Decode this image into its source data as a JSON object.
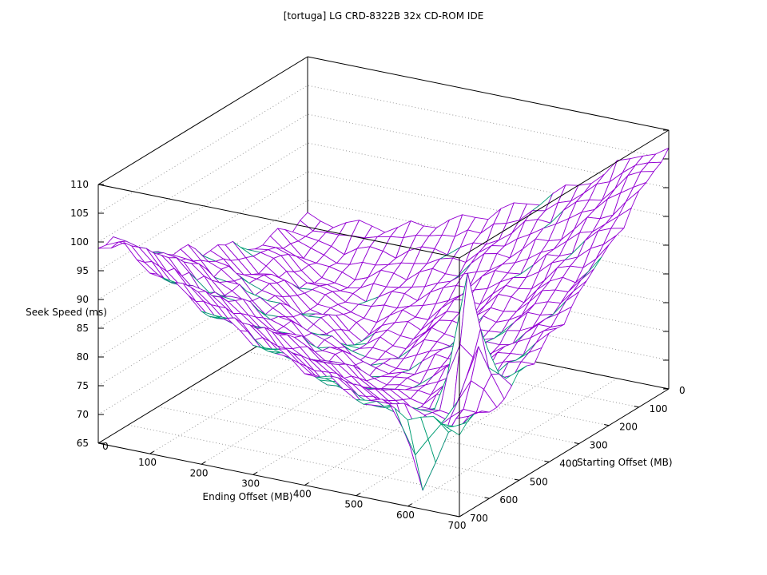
{
  "page": {
    "background": "#FFFFFF"
  },
  "chart_data": {
    "type": "surface3d",
    "style": "gnuplot hidden3d wireframe",
    "title": "[tortuga] LG CRD-8322B 32x CD-ROM IDE",
    "xlabel": "Ending Offset (MB)",
    "ylabel": "Starting Offset (MB)",
    "zlabel": "Seek Speed (ms)",
    "xlim": [
      0,
      700
    ],
    "ylim": [
      0,
      700
    ],
    "zlim": [
      65,
      110
    ],
    "x_ticks": [
      0,
      100,
      200,
      300,
      400,
      500,
      600,
      700
    ],
    "y_ticks": [
      0,
      100,
      200,
      300,
      400,
      500,
      600,
      700
    ],
    "z_ticks": [
      65,
      70,
      75,
      80,
      85,
      90,
      95,
      100,
      105,
      110
    ],
    "grid": "dotted gridlines on base and back walls at tick positions",
    "legend": "none",
    "colors": {
      "surface_top": "#9400D3",
      "surface_underside": "#009E73",
      "axes_box": "#000000",
      "grid_dots": "#999999",
      "background": "#FFFFFF"
    },
    "x_values": [
      0,
      50,
      100,
      150,
      200,
      250,
      300,
      350,
      400,
      450,
      500,
      550,
      600,
      650,
      700
    ],
    "y_values": [
      0,
      50,
      100,
      150,
      200,
      250,
      300,
      350,
      400,
      450,
      500,
      550,
      600,
      650,
      700
    ],
    "z_grid": {
      "rows_are": "starting_offset from 0 to 700 (step 50)",
      "cols_are": "ending_offset from 0 to 700 (step 50)",
      "units": "ms",
      "values": [
        [
          82.9,
          81.2,
          83.4,
          82.2,
          85.1,
          84.8,
          88.0,
          88.1,
          91.9,
          92.4,
          96.8,
          98.0,
          102.9,
          104.6,
          106.9
        ],
        [
          81.1,
          80.5,
          79.0,
          81.3,
          80.2,
          83.1,
          82.6,
          85.6,
          87.0,
          91.2,
          91.8,
          96.4,
          97.6,
          102.8,
          104.4
        ],
        [
          83.3,
          79.0,
          78.5,
          77.1,
          79.7,
          78.9,
          81.8,
          81.4,
          86.2,
          86.4,
          90.6,
          91.4,
          96.2,
          97.5,
          102.6
        ],
        [
          82.0,
          81.3,
          77.2,
          76.8,
          75.8,
          78.5,
          77.8,
          81.0,
          81.9,
          85.8,
          86.1,
          90.4,
          91.5,
          96.3,
          97.7
        ],
        [
          82.8,
          82.2,
          77.9,
          77.7,
          75.6,
          74.7,
          77.8,
          77.0,
          81.4,
          81.5,
          85.7,
          86.0,
          90.6,
          91.5,
          96.4
        ],
        [
          85.8,
          81.1,
          80.9,
          76.7,
          76.6,
          73.0,
          75.9,
          75.2,
          79.4,
          79.3,
          83.4,
          83.7,
          88.2,
          88.9,
          93.8
        ],
        [
          86.8,
          82.5,
          81.9,
          77.7,
          77.8,
          73.9,
          74.4,
          73.5,
          77.6,
          77.4,
          81.3,
          81.6,
          86.0,
          86.6,
          91.4
        ],
        [
          86.5,
          85.6,
          81.4,
          81.0,
          77.0,
          77.1,
          73.5,
          74.2,
          73.9,
          77.6,
          77.5,
          81.6,
          82.0,
          86.4,
          87.3
        ],
        [
          90.0,
          85.3,
          84.9,
          80.6,
          80.4,
          76.6,
          77.0,
          73.4,
          74.3,
          74.0,
          77.9,
          78.0,
          82.2,
          82.7,
          87.4
        ],
        [
          89.8,
          89.2,
          84.6,
          84.4,
          80.2,
          80.3,
          76.5,
          76.9,
          73.6,
          74.6,
          74.6,
          78.5,
          78.7,
          83.0,
          83.6
        ],
        [
          92.0,
          91.1,
          86.6,
          86.2,
          82.2,
          82.1,
          78.3,
          78.7,
          75.4,
          76.2,
          73.2,
          75.0,
          99.2,
          79.7,
          84.1
        ],
        [
          94.2,
          93.4,
          88.7,
          88.4,
          84.1,
          84.2,
          80.3,
          80.7,
          77.3,
          77.9,
          75.0,
          76.1,
          76.1,
          88.9,
          80.7
        ],
        [
          96.6,
          95.8,
          91.2,
          91.0,
          86.4,
          86.3,
          82.6,
          82.9,
          79.3,
          80.1,
          77.1,
          78.1,
          75.6,
          79.6,
          80.0
        ],
        [
          99.3,
          98.4,
          93.7,
          93.3,
          88.8,
          88.9,
          84.9,
          85.3,
          81.7,
          82.4,
          79.2,
          80.3,
          66.2,
          77.2,
          81.3
        ],
        [
          98.9,
          100.8,
          96.4,
          95.7,
          91.6,
          91.3,
          87.5,
          87.8,
          84.4,
          84.9,
          81.7,
          82.7,
          80.0,
          81.5,
          79.2
        ]
      ]
    }
  }
}
